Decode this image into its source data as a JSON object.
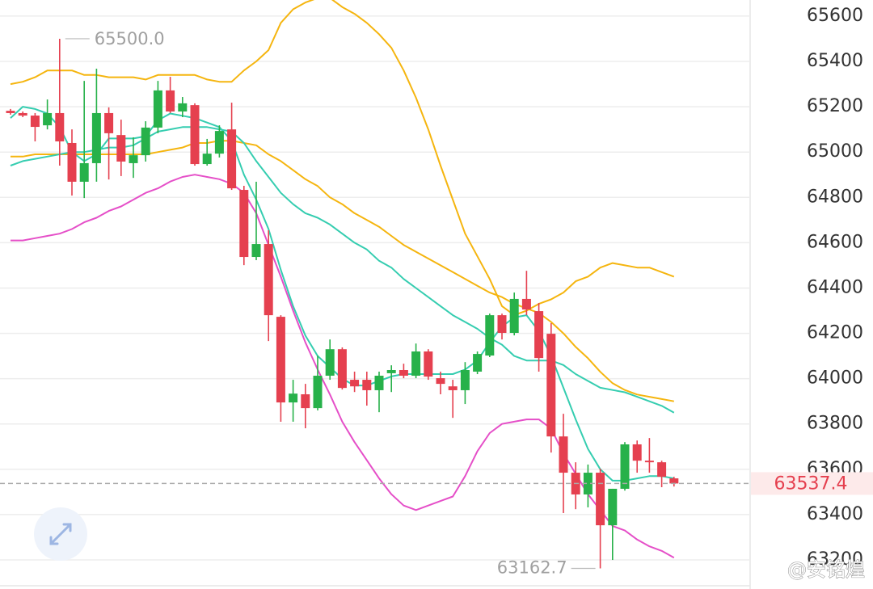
{
  "chart_data": {
    "type": "candlestick",
    "up_color": "#27b14a",
    "down_color": "#e5404f",
    "ylim": [
      63086,
      65671
    ],
    "yticks": [
      63200,
      63400,
      63600,
      63800,
      64000,
      64200,
      64400,
      64600,
      64800,
      65000,
      65200,
      65400,
      65600
    ],
    "grid": true,
    "candles": {
      "open": [
        65182,
        65172,
        65161,
        65118,
        65172,
        65040,
        64869,
        64951,
        65172,
        65075,
        64951,
        64986,
        65108,
        65272,
        65179,
        65207,
        64947,
        64993,
        65100,
        64833,
        64537,
        64594,
        64273,
        63895,
        63931,
        63870,
        64013,
        64130,
        63995,
        63995,
        63949,
        64024,
        64038,
        64013,
        64120,
        64002,
        63966,
        63949,
        64031,
        64102,
        64280,
        64202,
        64352,
        64298,
        64198,
        63745,
        63585,
        63489,
        63585,
        63353,
        63514,
        63710,
        63638,
        63631,
        63560
      ],
      "high": [
        65190,
        65179,
        65172,
        65232,
        65500,
        65100,
        65314,
        65368,
        65197,
        65143,
        65065,
        65136,
        65314,
        65332,
        65243,
        65215,
        65058,
        65118,
        65218,
        64851,
        64869,
        64655,
        64280,
        63995,
        63977,
        64102,
        64173,
        64138,
        64031,
        64031,
        64031,
        64059,
        64066,
        64155,
        64130,
        64031,
        63995,
        64073,
        64120,
        64287,
        64287,
        64380,
        64476,
        64334,
        64245,
        63845,
        63631,
        63621,
        63603,
        63514,
        63720,
        63727,
        63738,
        63638,
        63567
      ],
      "low": [
        65165,
        65154,
        65047,
        65100,
        64940,
        64808,
        64797,
        64869,
        64879,
        64894,
        64886,
        64958,
        65083,
        65172,
        65154,
        64940,
        64940,
        64976,
        64833,
        64501,
        64523,
        64166,
        63810,
        63810,
        63781,
        63860,
        63995,
        63952,
        63941,
        63881,
        63852,
        63941,
        64002,
        64002,
        63995,
        63931,
        63827,
        63888,
        64020,
        64095,
        64173,
        64191,
        64280,
        64031,
        63674,
        63407,
        63424,
        63432,
        63162.7,
        63200,
        63506,
        63585,
        63585,
        63521,
        63524
      ],
      "close": [
        65172,
        65161,
        65111,
        65172,
        65047,
        64869,
        64951,
        65172,
        65083,
        64958,
        64986,
        65108,
        65272,
        65179,
        65215,
        64947,
        64993,
        65093,
        64840,
        64537,
        64594,
        64280,
        63895,
        63934,
        63870,
        64013,
        64130,
        63959,
        63966,
        63949,
        64013,
        64038,
        64013,
        64120,
        64009,
        63977,
        63949,
        64038,
        64109,
        64280,
        64202,
        64352,
        64305,
        64091,
        63745,
        63585,
        63489,
        63585,
        63353,
        63514,
        63710,
        63638,
        63631,
        63567,
        63537.4
      ]
    },
    "lines": [
      {
        "color": "#f5b50f",
        "values": [
          65300,
          65310,
          65330,
          65360,
          65360,
          65360,
          65340,
          65340,
          65330,
          65330,
          65330,
          65320,
          65340,
          65340,
          65340,
          65340,
          65320,
          65310,
          65310,
          65360,
          65400,
          65450,
          65570,
          65630,
          65660,
          65680,
          65680,
          65640,
          65610,
          65570,
          65520,
          65460,
          65360,
          65240,
          65100,
          64940,
          64790,
          64640,
          64540,
          64440,
          64320,
          64280,
          64300,
          64330,
          64350,
          64380,
          64430,
          64450,
          64490,
          64510,
          64500,
          64490,
          64490,
          64470,
          64450
        ]
      },
      {
        "color": "#f5b50f",
        "values": [
          64980,
          64980,
          64990,
          64990,
          64990,
          64990,
          64990,
          64990,
          64990,
          64990,
          64990,
          64990,
          65000,
          65010,
          65020,
          65040,
          65040,
          65050,
          65050,
          65040,
          65030,
          64990,
          64960,
          64920,
          64880,
          64850,
          64800,
          64770,
          64730,
          64700,
          64670,
          64630,
          64590,
          64560,
          64530,
          64500,
          64470,
          64440,
          64410,
          64380,
          64360,
          64330,
          64310,
          64290,
          64250,
          64200,
          64140,
          64090,
          64030,
          63980,
          63950,
          63930,
          63920,
          63910,
          63900
        ]
      },
      {
        "color": "#35cdb0",
        "values": [
          65150,
          65200,
          65190,
          65170,
          65110,
          65000,
          64960,
          64990,
          65060,
          65060,
          65060,
          65070,
          65140,
          65170,
          65160,
          65150,
          65130,
          65110,
          65050,
          64900,
          64790,
          64660,
          64480,
          64320,
          64190,
          64100,
          64050,
          64000,
          63970,
          63970,
          63990,
          64010,
          64020,
          64020,
          64020,
          64020,
          64020,
          64040,
          64080,
          64160,
          64230,
          64270,
          64280,
          64210,
          64100,
          63960,
          63820,
          63690,
          63600,
          63550,
          63550,
          63560,
          63570,
          63570,
          63560
        ]
      },
      {
        "color": "#35cdb0",
        "values": [
          64940,
          64960,
          64970,
          64980,
          64990,
          65000,
          65000,
          65010,
          65020,
          65020,
          65030,
          65060,
          65090,
          65100,
          65110,
          65110,
          65110,
          65100,
          65090,
          65040,
          64960,
          64890,
          64820,
          64770,
          64730,
          64710,
          64680,
          64640,
          64600,
          64570,
          64520,
          64490,
          64440,
          64400,
          64360,
          64320,
          64280,
          64250,
          64220,
          64180,
          64150,
          64100,
          64080,
          64080,
          64080,
          64060,
          64020,
          63990,
          63960,
          63950,
          63940,
          63920,
          63900,
          63880,
          63850
        ]
      },
      {
        "color": "#e54fc8",
        "values": [
          64610,
          64610,
          64620,
          64630,
          64640,
          64660,
          64690,
          64710,
          64740,
          64760,
          64790,
          64820,
          64840,
          64870,
          64890,
          64900,
          64890,
          64880,
          64860,
          64820,
          64730,
          64590,
          64450,
          64300,
          64160,
          64040,
          63930,
          63810,
          63720,
          63640,
          63560,
          63490,
          63440,
          63420,
          63440,
          63460,
          63480,
          63570,
          63680,
          63760,
          63800,
          63810,
          63820,
          63820,
          63780,
          63670,
          63580,
          63490,
          63420,
          63350,
          63330,
          63290,
          63260,
          63240,
          63210
        ]
      }
    ],
    "max_label": {
      "value": 65500,
      "label": "65500.0"
    },
    "min_label": {
      "value": 63162.7,
      "label": "63162.7"
    },
    "last_price": {
      "value": 63537.4,
      "label": "63537.4"
    },
    "watermark": "@安铭煌"
  }
}
